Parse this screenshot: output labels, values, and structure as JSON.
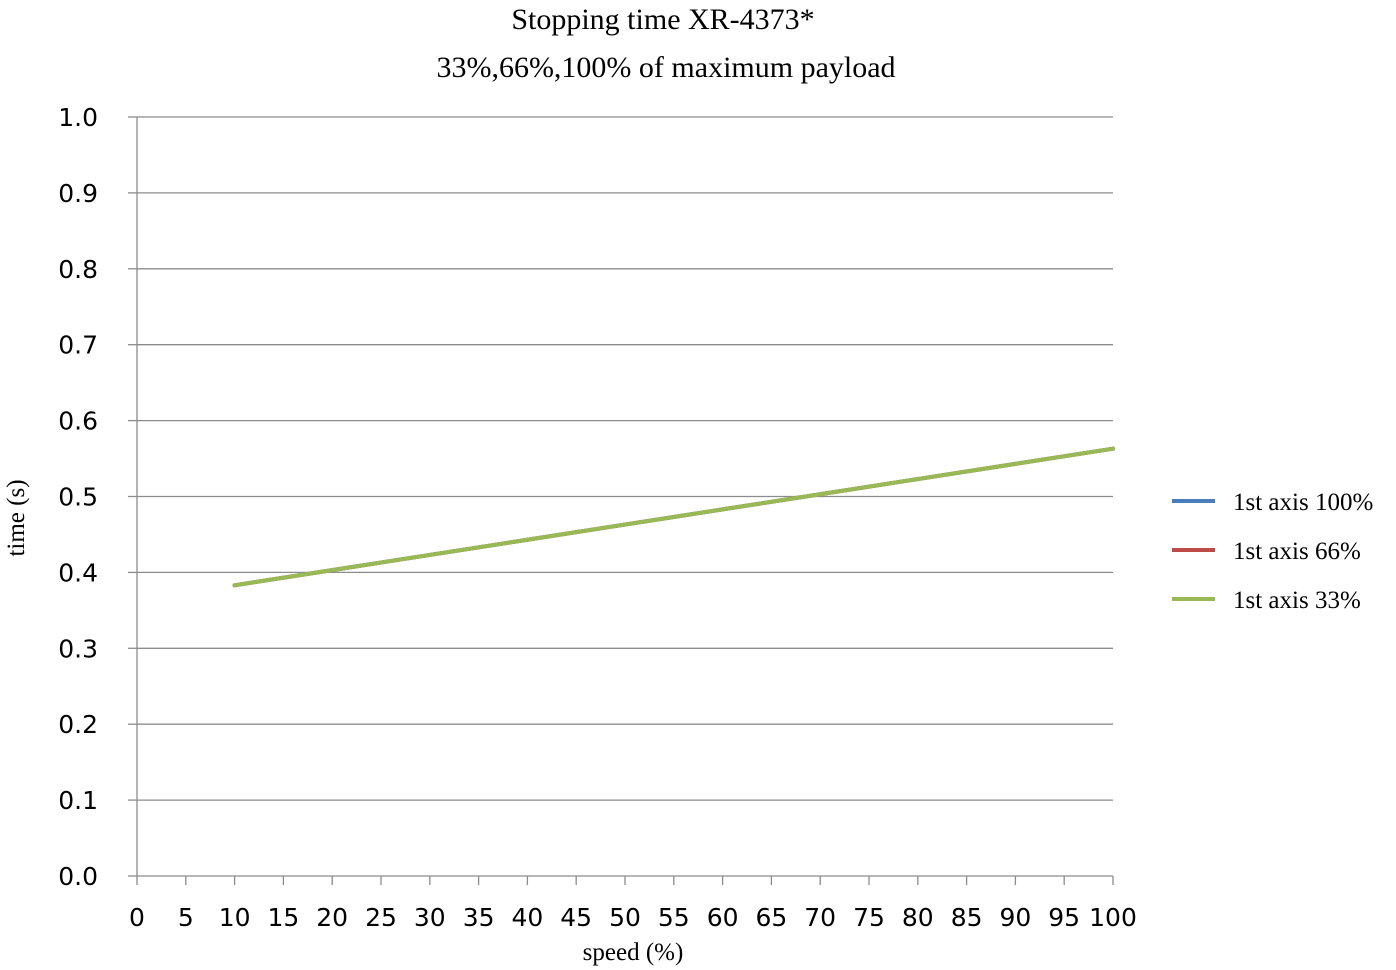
{
  "chart_data": {
    "type": "line",
    "title": "Stopping time   XR-4373*",
    "subtitle": "33%,66%,100% of maximum payload",
    "xlabel": "speed (%)",
    "ylabel": "time (s)",
    "xlim": [
      0,
      100
    ],
    "ylim": [
      0,
      1.0
    ],
    "x_ticks": [
      "0",
      "5",
      "10",
      "15",
      "20",
      "25",
      "30",
      "35",
      "40",
      "45",
      "50",
      "55",
      "60",
      "65",
      "70",
      "75",
      "80",
      "85",
      "90",
      "95",
      "100"
    ],
    "y_ticks": [
      "0.0",
      "0.1",
      "0.2",
      "0.3",
      "0.4",
      "0.5",
      "0.6",
      "0.7",
      "0.8",
      "0.9",
      "1.0"
    ],
    "grid": true,
    "legend_position": "right",
    "x": [
      10,
      20,
      30,
      40,
      50,
      60,
      70,
      80,
      90,
      100
    ],
    "series": [
      {
        "name": "1st axis 100%",
        "color": "#4a7ebb",
        "values": [
          0.383,
          0.403,
          0.423,
          0.443,
          0.463,
          0.483,
          0.503,
          0.523,
          0.543,
          0.563
        ]
      },
      {
        "name": "1st axis 66%",
        "color": "#be4b48",
        "values": [
          0.383,
          0.403,
          0.423,
          0.443,
          0.463,
          0.483,
          0.503,
          0.523,
          0.543,
          0.563
        ]
      },
      {
        "name": "1st axis 33%",
        "color": "#98b954",
        "values": [
          0.383,
          0.403,
          0.423,
          0.443,
          0.463,
          0.483,
          0.503,
          0.523,
          0.543,
          0.563
        ]
      }
    ]
  }
}
